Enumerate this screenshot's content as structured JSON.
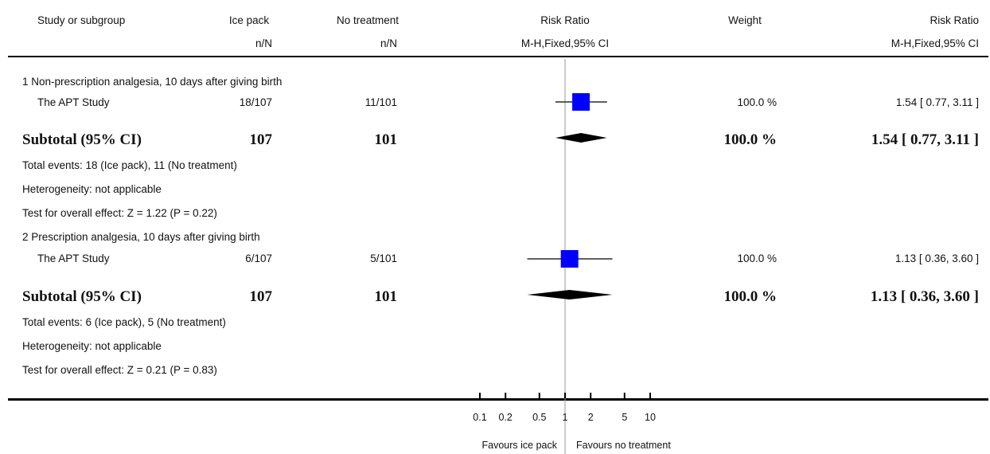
{
  "header": {
    "study": "Study or subgroup",
    "ice": "Ice pack",
    "ice_sub": "n/N",
    "none": "No treatment",
    "none_sub": "n/N",
    "rr_plot": "Risk Ratio",
    "rr_plot_sub": "M-H,Fixed,95% CI",
    "weight": "Weight",
    "rr_text": "Risk Ratio",
    "rr_text_sub": "M-H,Fixed,95% CI"
  },
  "groups": [
    {
      "title": "1 Non-prescription analgesia, 10 days after giving birth",
      "study": {
        "name": "The APT Study",
        "ice": "18/107",
        "none": "11/101",
        "weight": "100.0 %",
        "ci_text": "1.54 [ 0.77, 3.11 ]"
      },
      "subtotal": {
        "label": "Subtotal (95% CI)",
        "ice": "107",
        "none": "101",
        "weight": "100.0 %",
        "ci_text": "1.54 [ 0.77, 3.11 ]"
      },
      "notes": [
        "Total events: 18 (Ice pack), 11 (No treatment)",
        "Heterogeneity: not applicable",
        "Test for overall effect: Z = 1.22 (P = 0.22)"
      ]
    },
    {
      "title": "2 Prescription analgesia, 10 days after giving birth",
      "study": {
        "name": "The APT Study",
        "ice": "6/107",
        "none": "5/101",
        "weight": "100.0 %",
        "ci_text": "1.13 [ 0.36, 3.60 ]"
      },
      "subtotal": {
        "label": "Subtotal (95% CI)",
        "ice": "107",
        "none": "101",
        "weight": "100.0 %",
        "ci_text": "1.13 [ 0.36, 3.60 ]"
      },
      "notes": [
        "Total events: 6 (Ice pack), 5 (No treatment)",
        "Heterogeneity: not applicable",
        "Test for overall effect: Z = 0.21 (P = 0.83)"
      ]
    }
  ],
  "axis": {
    "ticks": [
      "0.1",
      "0.2",
      "0.5",
      "1",
      "2",
      "5",
      "10"
    ],
    "favours_left": "Favours ice pack",
    "favours_right": "Favours no treatment"
  },
  "chart_data": {
    "type": "forest",
    "scale": "log",
    "xlim": [
      0.1,
      10
    ],
    "tick_values": [
      0.1,
      0.2,
      0.5,
      1,
      2,
      5,
      10
    ],
    "null_value": 1,
    "colors": {
      "study_marker": "#0000ff",
      "diamond": "#000000",
      "reference_line": "#999999"
    },
    "studies": [
      {
        "group": 1,
        "rr": 1.54,
        "lower": 0.77,
        "upper": 3.11,
        "weight": 100.0
      },
      {
        "group": 2,
        "rr": 1.13,
        "lower": 0.36,
        "upper": 3.6,
        "weight": 100.0
      }
    ],
    "subtotals": [
      {
        "group": 1,
        "rr": 1.54,
        "lower": 0.77,
        "upper": 3.11
      },
      {
        "group": 2,
        "rr": 1.13,
        "lower": 0.36,
        "upper": 3.6
      }
    ]
  }
}
